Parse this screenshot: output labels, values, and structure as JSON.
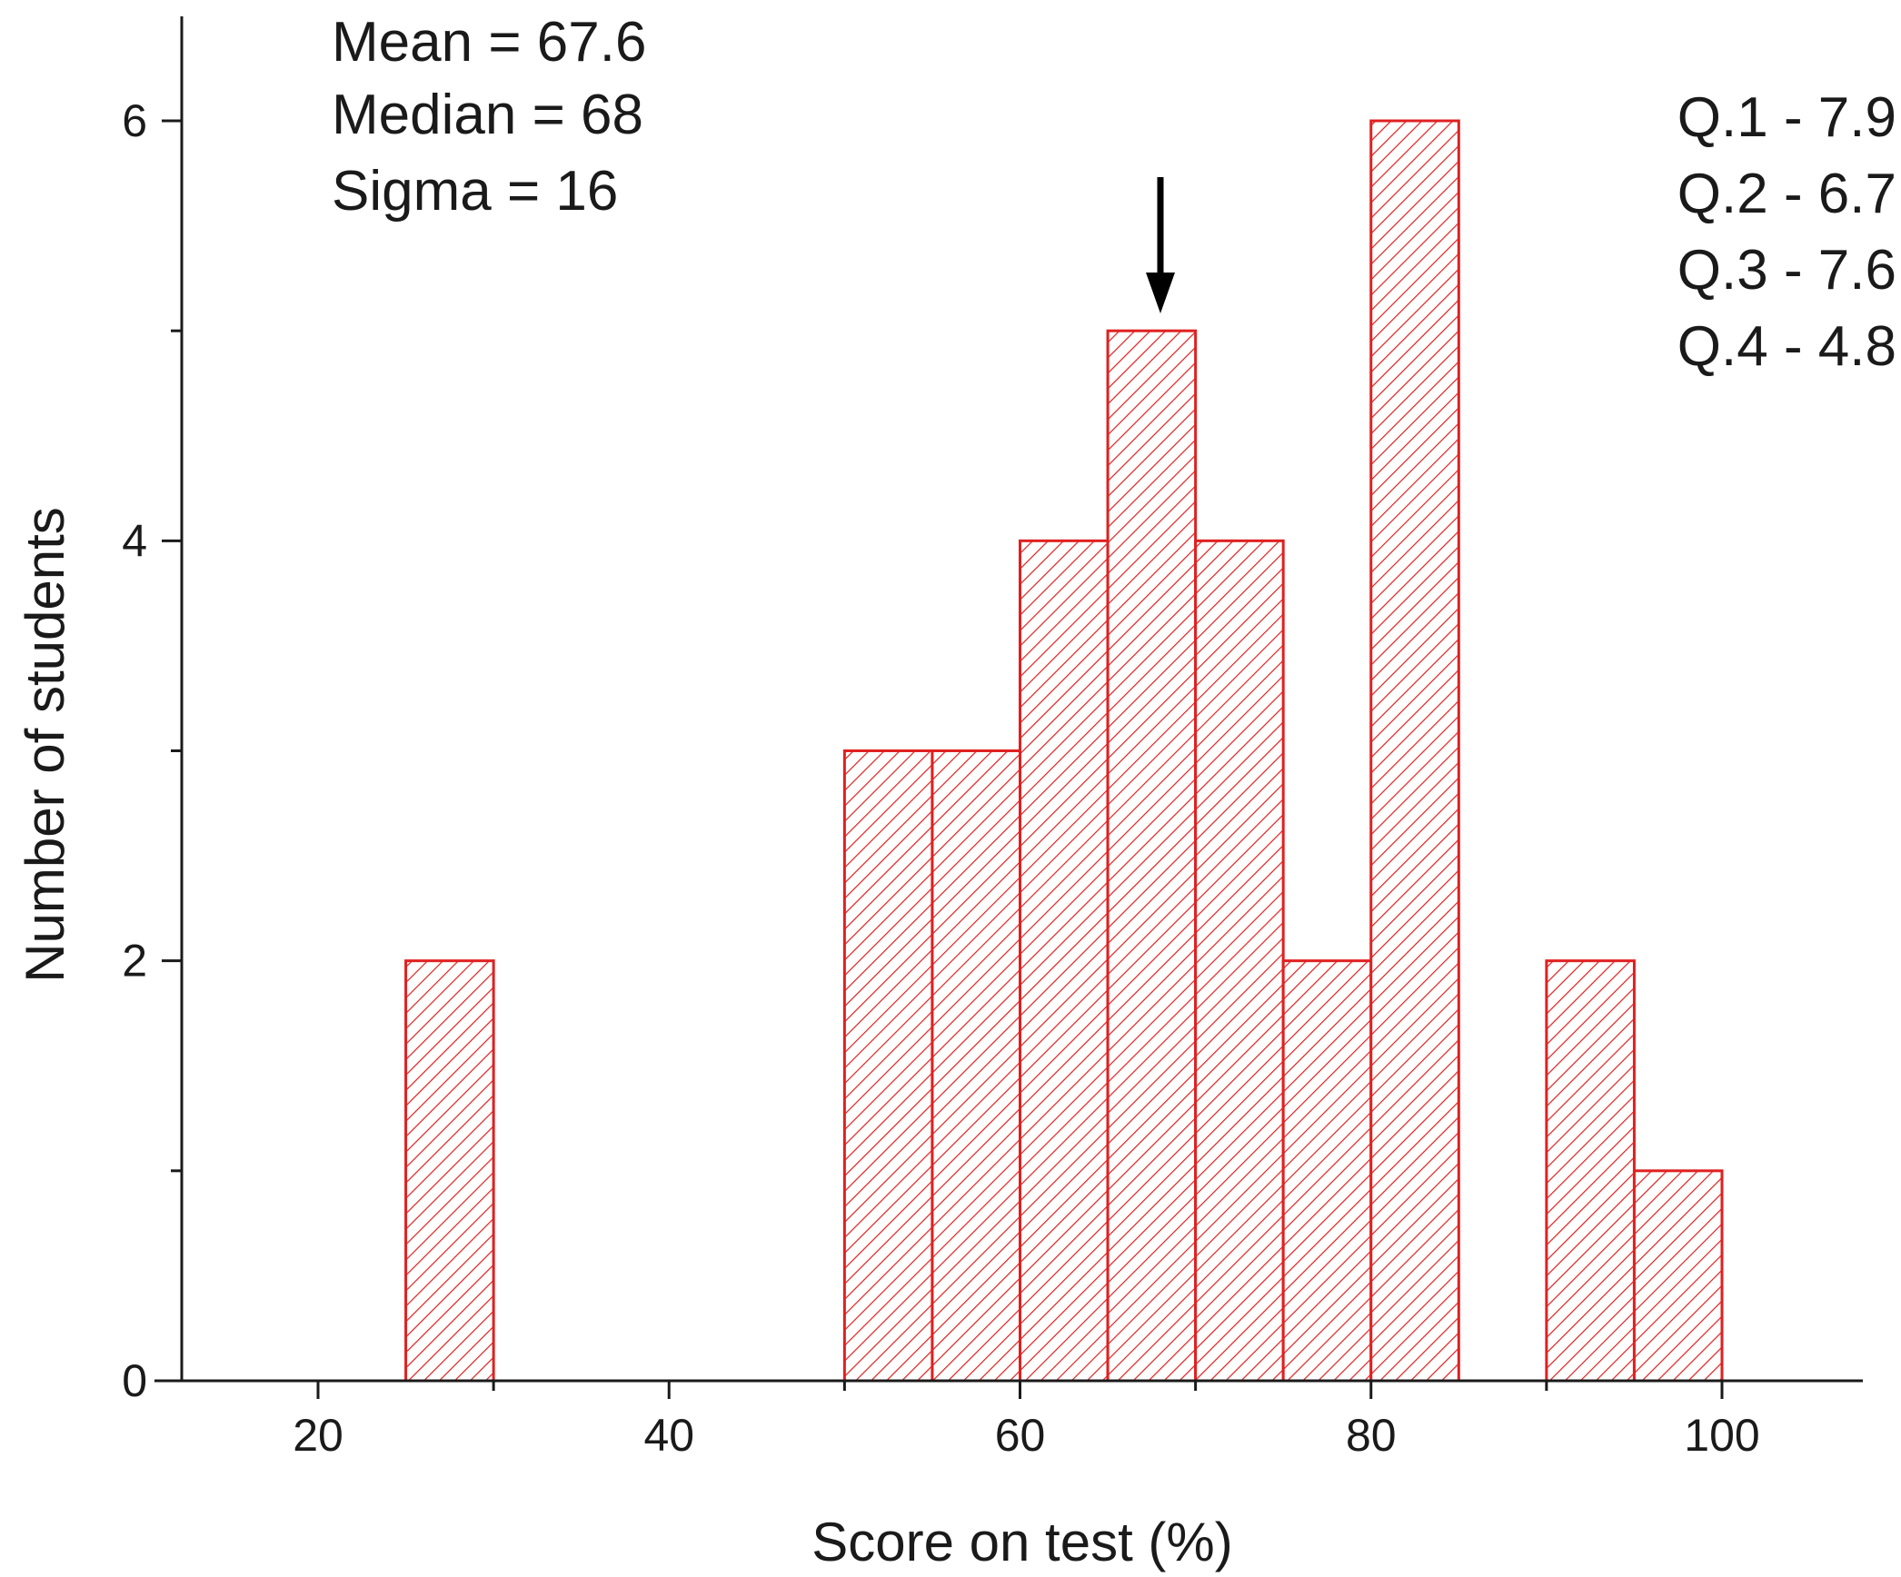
{
  "chart_data": {
    "type": "bar",
    "histogram": true,
    "bins": [
      {
        "start": 25,
        "end": 30,
        "count": 2
      },
      {
        "start": 50,
        "end": 55,
        "count": 3
      },
      {
        "start": 55,
        "end": 60,
        "count": 3
      },
      {
        "start": 60,
        "end": 65,
        "count": 4
      },
      {
        "start": 65,
        "end": 70,
        "count": 5
      },
      {
        "start": 70,
        "end": 75,
        "count": 4
      },
      {
        "start": 75,
        "end": 80,
        "count": 2
      },
      {
        "start": 80,
        "end": 85,
        "count": 6
      },
      {
        "start": 90,
        "end": 95,
        "count": 2
      },
      {
        "start": 95,
        "end": 100,
        "count": 1
      }
    ],
    "xlabel": "Score on test (%)",
    "ylabel": "Number of students",
    "xlim": [
      12,
      108
    ],
    "ylim": [
      0,
      6.5
    ],
    "xticks": [
      "20",
      "40",
      "60",
      "80",
      "100"
    ],
    "yticks": [
      "0",
      "2",
      "4",
      "6"
    ],
    "bar_color": "#e02020",
    "bar_fill": "diagonal-hatch",
    "arrow_at_x": 68,
    "stats": [
      "Mean = 67.6",
      "Median = 68",
      "Sigma = 16"
    ],
    "quartiles": [
      "Q.1 - 7.9",
      "Q.2 - 6.7",
      "Q.3 - 7.6",
      "Q.4 - 4.8"
    ]
  }
}
